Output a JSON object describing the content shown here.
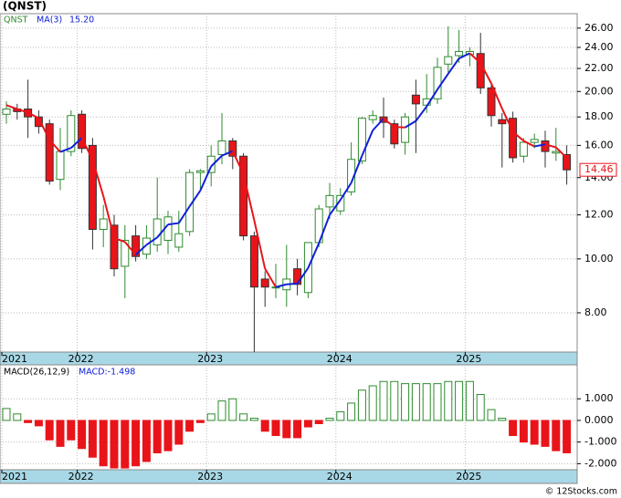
{
  "chart_data": [
    {
      "type": "candlestick",
      "title": "(QNST)",
      "ticker": "QNST",
      "log_scale": true,
      "grid": true,
      "categories": [
        "2021",
        null,
        null,
        null,
        null,
        null,
        null,
        "2022",
        null,
        null,
        null,
        null,
        null,
        null,
        null,
        null,
        null,
        null,
        null,
        "2023",
        null,
        null,
        null,
        null,
        null,
        null,
        null,
        null,
        null,
        null,
        null,
        "2024",
        null,
        null,
        null,
        null,
        null,
        null,
        null,
        null,
        null,
        null,
        null,
        "2025",
        null,
        null,
        null,
        null,
        null,
        null,
        null,
        null,
        null
      ],
      "open": [
        18.2,
        18.6,
        18.6,
        18.0,
        17.5,
        13.9,
        15.6,
        18.2,
        16.0,
        11.3,
        11.5,
        9.7,
        11.0,
        10.2,
        10.6,
        10.8,
        10.5,
        11.2,
        14.3,
        14.3,
        15.4,
        16.3,
        15.3,
        11.0,
        9.2,
        8.9,
        8.8,
        9.6,
        8.7,
        10.7,
        12.4,
        12.2,
        13.2,
        15.0,
        17.8,
        18.0,
        17.5,
        16.2,
        19.7,
        18.9,
        19.4,
        22.4,
        23.2,
        23.3,
        23.4,
        20.3,
        17.8,
        17.9,
        15.3,
        16.2,
        16.3,
        15.5,
        15.4
      ],
      "high": [
        19.2,
        19.0,
        21.0,
        18.5,
        17.8,
        17.2,
        18.5,
        18.5,
        16.5,
        12.5,
        12.0,
        11.5,
        11.5,
        11.5,
        14.0,
        12.2,
        12.2,
        14.5,
        14.5,
        16.0,
        18.3,
        16.5,
        15.5,
        11.2,
        9.5,
        9.8,
        10.6,
        10.0,
        10.7,
        12.5,
        13.7,
        13.4,
        16.2,
        18.0,
        18.5,
        19.5,
        17.8,
        18.3,
        21.0,
        21.5,
        23.0,
        26.2,
        25.8,
        24.0,
        25.5,
        20.8,
        18.3,
        18.4,
        16.5,
        16.8,
        17.0,
        17.2,
        16.0
      ],
      "low": [
        17.5,
        17.8,
        16.5,
        16.8,
        13.6,
        13.3,
        15.3,
        15.5,
        10.4,
        10.5,
        9.3,
        8.5,
        9.9,
        10.0,
        10.3,
        10.2,
        10.3,
        11.0,
        13.3,
        13.5,
        14.8,
        14.5,
        10.8,
        6.8,
        8.2,
        8.5,
        8.2,
        8.6,
        8.5,
        10.5,
        11.8,
        12.0,
        13.0,
        14.8,
        17.5,
        16.5,
        15.8,
        15.4,
        15.5,
        18.3,
        19.0,
        21.5,
        22.5,
        22.2,
        19.8,
        17.3,
        14.6,
        14.9,
        14.9,
        15.8,
        14.6,
        15.0,
        13.6
      ],
      "close": [
        18.6,
        18.4,
        18.0,
        17.3,
        13.8,
        15.6,
        18.1,
        15.8,
        11.3,
        11.8,
        9.6,
        10.8,
        10.1,
        10.9,
        11.8,
        11.9,
        11.1,
        14.3,
        14.4,
        15.3,
        16.3,
        15.3,
        11.0,
        8.9,
        8.9,
        8.9,
        9.2,
        9.0,
        10.7,
        12.3,
        13.0,
        13.0,
        15.1,
        17.9,
        18.1,
        17.6,
        16.1,
        18.0,
        19.0,
        19.4,
        22.1,
        23.1,
        23.6,
        23.6,
        20.3,
        18.1,
        17.5,
        15.2,
        16.2,
        16.4,
        15.6,
        15.6,
        14.46
      ],
      "up_color": "#2e8b2e",
      "down_color": "#e8141a",
      "ylim": [
        6.8,
        27.6
      ],
      "yticks": [
        {
          "value": 8,
          "label": "8.00"
        },
        {
          "value": 10,
          "label": "10.00"
        },
        {
          "value": 12,
          "label": "12.00"
        },
        {
          "value": 14,
          "label": "14.00"
        },
        {
          "value": 16,
          "label": "16.00"
        },
        {
          "value": 18,
          "label": "18.00"
        },
        {
          "value": 20,
          "label": "20.00"
        },
        {
          "value": 22,
          "label": "22.00"
        },
        {
          "value": 24,
          "label": "24.00"
        },
        {
          "value": 26,
          "label": "26.00"
        }
      ],
      "ma": {
        "name": "MA(3)",
        "last_label": "15.20",
        "up_color": "#1020d8",
        "down_color": "#e8141a",
        "values": [
          18.9,
          18.6,
          18.33,
          17.9,
          16.37,
          15.57,
          15.83,
          16.5,
          15.07,
          12.97,
          10.9,
          10.73,
          10.17,
          10.6,
          10.93,
          11.53,
          11.6,
          12.43,
          13.27,
          14.67,
          15.33,
          15.63,
          14.2,
          11.73,
          9.6,
          8.9,
          9.0,
          9.03,
          9.63,
          10.67,
          12.0,
          12.77,
          13.7,
          15.33,
          17.03,
          17.87,
          17.27,
          17.23,
          17.7,
          18.8,
          20.17,
          21.53,
          22.93,
          23.43,
          22.5,
          20.67,
          18.63,
          16.93,
          16.3,
          15.93,
          16.07,
          15.87,
          15.2
        ]
      }
    },
    {
      "type": "bar",
      "title": "MACD(26,12,9)",
      "label": "MACD:-1.498",
      "grid": true,
      "categories": [
        "2021",
        null,
        null,
        null,
        null,
        null,
        null,
        "2022",
        null,
        null,
        null,
        null,
        null,
        null,
        null,
        null,
        null,
        null,
        null,
        "2023",
        null,
        null,
        null,
        null,
        null,
        null,
        null,
        null,
        null,
        null,
        null,
        "2024",
        null,
        null,
        null,
        null,
        null,
        null,
        null,
        null,
        null,
        null,
        null,
        "2025",
        null,
        null,
        null,
        null,
        null,
        null,
        null,
        null,
        null
      ],
      "values": [
        0.55,
        0.3,
        -0.1,
        -0.25,
        -0.9,
        -1.2,
        -0.9,
        -1.3,
        -1.7,
        -2.1,
        -2.2,
        -2.2,
        -2.1,
        -1.9,
        -1.5,
        -1.4,
        -1.1,
        -0.5,
        -0.1,
        0.3,
        0.9,
        1.0,
        0.3,
        0.1,
        -0.5,
        -0.7,
        -0.8,
        -0.8,
        -0.3,
        -0.15,
        0.1,
        0.4,
        0.8,
        1.4,
        1.6,
        1.8,
        1.8,
        1.7,
        1.7,
        1.7,
        1.7,
        1.8,
        1.8,
        1.8,
        1.2,
        0.5,
        0.1,
        -0.7,
        -1.0,
        -1.1,
        -1.2,
        -1.4,
        -1.498
      ],
      "pos_color": "#2e8b2e",
      "neg_color": "#e8141a",
      "ylim": [
        -2.28,
        2.57
      ],
      "yticks": [
        {
          "value": 1,
          "label": "1.000"
        },
        {
          "value": 0,
          "label": "0.000"
        },
        {
          "value": -1,
          "label": "-1.000"
        },
        {
          "value": -2,
          "label": "-2.000"
        }
      ]
    }
  ],
  "footer": "© 12Stocks.com"
}
